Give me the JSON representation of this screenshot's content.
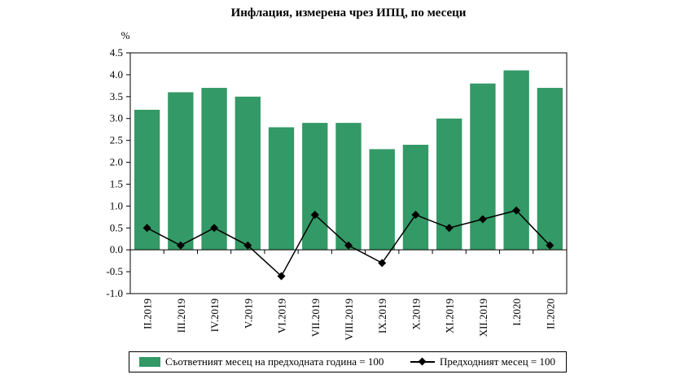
{
  "chart_data": {
    "type": "bar",
    "title": "Инфлация, измерена чрез ИПЦ, по месеци",
    "ylabel": "%",
    "ylim": [
      -1.0,
      4.5
    ],
    "yticks": [
      "4.5",
      "4.0",
      "3.5",
      "3.0",
      "2.5",
      "2.0",
      "1.5",
      "1.0",
      "0.5",
      "0.0",
      "-0.5",
      "-1.0"
    ],
    "ytick_values": [
      4.5,
      4.0,
      3.5,
      3.0,
      2.5,
      2.0,
      1.5,
      1.0,
      0.5,
      0.0,
      -0.5,
      -1.0
    ],
    "categories": [
      "II.2019",
      "III.2019",
      "IV.2019",
      "V.2019",
      "VI.2019",
      "VII.2019",
      "VIII.2019",
      "IX.2019",
      "X.2019",
      "XI.2019",
      "XII.2019",
      "I.2020",
      "II.2020"
    ],
    "grid": false,
    "legend_position": "bottom",
    "series": [
      {
        "name": "Съответният месец на предходната година = 100",
        "kind": "bar",
        "color": "#339966",
        "values": [
          3.2,
          3.6,
          3.7,
          3.5,
          2.8,
          2.9,
          2.9,
          2.3,
          2.4,
          3.0,
          3.8,
          4.1,
          3.7
        ]
      },
      {
        "name": "Предходният месец = 100",
        "kind": "line",
        "color": "#000000",
        "marker": "diamond",
        "values": [
          0.5,
          0.1,
          0.5,
          0.1,
          -0.6,
          0.8,
          0.1,
          -0.3,
          0.8,
          0.5,
          0.7,
          0.9,
          0.1
        ]
      }
    ]
  }
}
